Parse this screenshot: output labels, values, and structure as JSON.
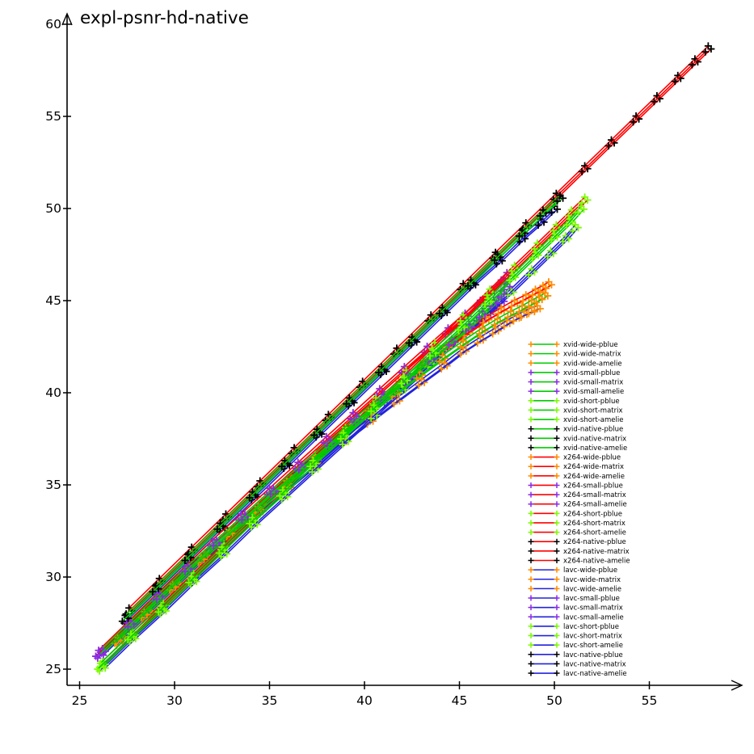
{
  "title": "expl-psnr-hd-native",
  "colors": {
    "xvid": "#00cc00",
    "x264": "#ff0000",
    "lavc": "#2222dd",
    "wide": "#ff8c00",
    "small": "#8a2be2",
    "short": "#7cfc00",
    "native": "#000000",
    "axis": "#000000",
    "background": "#ffffff"
  },
  "chart_data": {
    "type": "line",
    "title": "expl-psnr-hd-native",
    "xlabel": "",
    "ylabel": "",
    "xlim": [
      25,
      58.5
    ],
    "ylim": [
      25,
      60
    ],
    "xticks": [
      25,
      30,
      35,
      40,
      45,
      50,
      55
    ],
    "yticks": [
      25,
      30,
      35,
      40,
      45,
      50,
      55,
      60
    ],
    "grid": false,
    "legend_position": "right-middle",
    "clips": [
      {
        "name": "pblue",
        "dx": 0.0,
        "dy": 0.12
      },
      {
        "name": "matrix",
        "dx": 0.15,
        "dy": -0.04
      },
      {
        "name": "amelie",
        "dx": -0.15,
        "dy": -0.2
      }
    ],
    "groups": [
      {
        "codec": "xvid",
        "size": "wide",
        "x": [
          27.0,
          28.4,
          29.9,
          31.4,
          32.9,
          34.4,
          35.9,
          37.4,
          38.8,
          40.2,
          41.6,
          42.9,
          44.1,
          45.2,
          46.2,
          47.0,
          47.7,
          48.3,
          48.8,
          49.2,
          49.5
        ],
        "y": [
          26.6,
          28.0,
          29.5,
          31.0,
          32.4,
          33.7,
          35.1,
          36.4,
          37.7,
          38.9,
          40.0,
          41.0,
          41.9,
          42.7,
          43.4,
          43.9,
          44.3,
          44.6,
          44.9,
          45.1,
          45.3
        ]
      },
      {
        "codec": "xvid",
        "size": "small",
        "x": [
          26.2,
          27.7,
          29.2,
          30.7,
          32.2,
          33.7,
          35.2,
          36.7,
          38.2,
          39.6,
          41.0,
          42.3,
          43.5,
          44.6,
          45.5,
          46.2,
          46.8,
          47.2,
          47.5
        ],
        "y": [
          26.0,
          27.5,
          29.0,
          30.5,
          31.9,
          33.3,
          34.7,
          36.0,
          37.3,
          38.6,
          39.8,
          40.9,
          41.9,
          42.8,
          43.6,
          44.3,
          44.9,
          45.4,
          45.8
        ]
      },
      {
        "codec": "xvid",
        "size": "short",
        "x": [
          26.1,
          27.7,
          29.3,
          30.9,
          32.5,
          34.1,
          35.7,
          37.3,
          38.9,
          40.5,
          42.1,
          43.6,
          45.1,
          46.5,
          47.8,
          49.0,
          50.0,
          50.8,
          51.4
        ],
        "y": [
          25.2,
          26.8,
          28.3,
          29.9,
          31.5,
          33.1,
          34.6,
          36.2,
          37.7,
          39.2,
          40.7,
          42.2,
          43.6,
          45.0,
          46.3,
          47.5,
          48.5,
          49.3,
          50.0
        ]
      },
      {
        "codec": "xvid",
        "size": "native",
        "x": [
          27.4,
          29.0,
          30.7,
          32.4,
          34.1,
          35.8,
          37.5,
          39.2,
          40.9,
          42.5,
          44.1,
          45.6,
          47.0,
          48.3,
          49.4,
          50.3
        ],
        "y": [
          27.8,
          29.4,
          31.1,
          32.8,
          34.5,
          36.2,
          37.9,
          39.6,
          41.3,
          42.9,
          44.5,
          46.0,
          47.4,
          48.7,
          49.8,
          50.6
        ]
      },
      {
        "codec": "x264",
        "size": "wide",
        "x": [
          27.2,
          28.6,
          30.1,
          31.6,
          33.1,
          34.6,
          36.1,
          37.6,
          39.0,
          40.4,
          41.8,
          43.1,
          44.3,
          45.4,
          46.4,
          47.2,
          47.9,
          48.5,
          49.0,
          49.4,
          49.7
        ],
        "y": [
          26.8,
          28.2,
          29.7,
          31.2,
          32.6,
          34.0,
          35.4,
          36.8,
          38.1,
          39.3,
          40.5,
          41.6,
          42.5,
          43.3,
          44.0,
          44.5,
          44.9,
          45.2,
          45.5,
          45.7,
          45.9
        ]
      },
      {
        "codec": "x264",
        "size": "small",
        "x": [
          26.0,
          27.5,
          29.0,
          30.5,
          32.0,
          33.5,
          35.0,
          36.5,
          38.0,
          39.4,
          40.8,
          42.1,
          43.3,
          44.4,
          45.3,
          46.1,
          46.7,
          47.2,
          47.5
        ],
        "y": [
          25.9,
          27.4,
          28.9,
          30.4,
          31.9,
          33.3,
          34.7,
          36.1,
          37.5,
          38.8,
          40.1,
          41.3,
          42.4,
          43.4,
          44.2,
          44.9,
          45.5,
          46.0,
          46.4
        ]
      },
      {
        "codec": "x264",
        "size": "short",
        "x": [
          26.2,
          27.8,
          29.4,
          31.0,
          32.6,
          34.2,
          35.8,
          37.4,
          39.0,
          40.6,
          42.2,
          43.7,
          45.2,
          46.6,
          47.9,
          49.1,
          50.1,
          50.9,
          51.6
        ],
        "y": [
          25.3,
          26.9,
          28.5,
          30.1,
          31.7,
          33.3,
          34.9,
          36.5,
          38.0,
          39.6,
          41.1,
          42.6,
          44.1,
          45.5,
          46.8,
          48.0,
          49.0,
          49.8,
          50.5
        ]
      },
      {
        "codec": "x264",
        "size": "native",
        "x": [
          27.6,
          29.2,
          30.9,
          32.7,
          34.5,
          36.3,
          38.1,
          39.9,
          41.7,
          43.5,
          45.2,
          46.9,
          48.5,
          50.1,
          51.6,
          53.0,
          54.3,
          55.4,
          56.5,
          57.4,
          58.1
        ],
        "y": [
          28.2,
          29.8,
          31.5,
          33.3,
          35.1,
          36.9,
          38.7,
          40.5,
          42.3,
          44.1,
          45.8,
          47.5,
          49.1,
          50.7,
          52.2,
          53.6,
          54.9,
          56.0,
          57.1,
          58.0,
          58.7
        ]
      },
      {
        "codec": "lavc",
        "size": "wide",
        "x": [
          27.1,
          28.5,
          30.0,
          31.5,
          33.0,
          34.5,
          36.0,
          37.5,
          38.9,
          40.3,
          41.7,
          43.0,
          44.2,
          45.2,
          46.1,
          46.9,
          47.5,
          48.0,
          48.4,
          48.8,
          49.1
        ],
        "y": [
          26.5,
          27.9,
          29.4,
          30.9,
          32.3,
          33.6,
          34.9,
          36.2,
          37.4,
          38.5,
          39.6,
          40.6,
          41.5,
          42.3,
          42.9,
          43.4,
          43.8,
          44.1,
          44.3,
          44.5,
          44.6
        ]
      },
      {
        "codec": "lavc",
        "size": "small",
        "x": [
          26.1,
          27.6,
          29.1,
          30.6,
          32.1,
          33.6,
          35.1,
          36.6,
          38.1,
          39.5,
          40.9,
          42.2,
          43.3,
          44.3,
          45.2,
          45.9,
          46.5,
          46.9,
          47.2
        ],
        "y": [
          25.8,
          27.3,
          28.8,
          30.3,
          31.7,
          33.1,
          34.5,
          35.8,
          37.1,
          38.3,
          39.5,
          40.6,
          41.6,
          42.5,
          43.2,
          43.8,
          44.3,
          44.7,
          45.0
        ]
      },
      {
        "codec": "lavc",
        "size": "short",
        "x": [
          26.2,
          27.8,
          29.4,
          31.0,
          32.6,
          34.2,
          35.8,
          37.4,
          39.0,
          40.5,
          42.0,
          43.5,
          45.0,
          46.4,
          47.7,
          48.8,
          49.8,
          50.6,
          51.1
        ],
        "y": [
          25.1,
          26.7,
          28.2,
          29.8,
          31.3,
          32.9,
          34.4,
          35.9,
          37.4,
          38.8,
          40.2,
          41.6,
          43.0,
          44.3,
          45.5,
          46.6,
          47.6,
          48.4,
          49.0
        ]
      },
      {
        "codec": "lavc",
        "size": "native",
        "x": [
          27.5,
          29.1,
          30.8,
          32.5,
          34.2,
          35.9,
          37.6,
          39.3,
          41.0,
          42.6,
          44.2,
          45.7,
          47.1,
          48.3,
          49.3,
          50.0
        ],
        "y": [
          27.7,
          29.3,
          31.0,
          32.7,
          34.4,
          36.1,
          37.8,
          39.5,
          41.2,
          42.8,
          44.4,
          45.9,
          47.2,
          48.4,
          49.3,
          50.0
        ]
      }
    ],
    "legend": [
      "xvid-wide-pblue",
      "xvid-wide-matrix",
      "xvid-wide-amelie",
      "xvid-small-pblue",
      "xvid-small-matrix",
      "xvid-small-amelie",
      "xvid-short-pblue",
      "xvid-short-matrix",
      "xvid-short-amelie",
      "xvid-native-pblue",
      "xvid-native-matrix",
      "xvid-native-amelie",
      "x264-wide-pblue",
      "x264-wide-matrix",
      "x264-wide-amelie",
      "x264-small-pblue",
      "x264-small-matrix",
      "x264-small-amelie",
      "x264-short-pblue",
      "x264-short-matrix",
      "x264-short-amelie",
      "x264-native-pblue",
      "x264-native-matrix",
      "x264-native-amelie",
      "lavc-wide-pblue",
      "lavc-wide-matrix",
      "lavc-wide-amelie",
      "lavc-small-pblue",
      "lavc-small-matrix",
      "lavc-small-amelie",
      "lavc-short-pblue",
      "lavc-short-matrix",
      "lavc-short-amelie",
      "lavc-native-pblue",
      "lavc-native-matrix",
      "lavc-native-amelie"
    ]
  }
}
